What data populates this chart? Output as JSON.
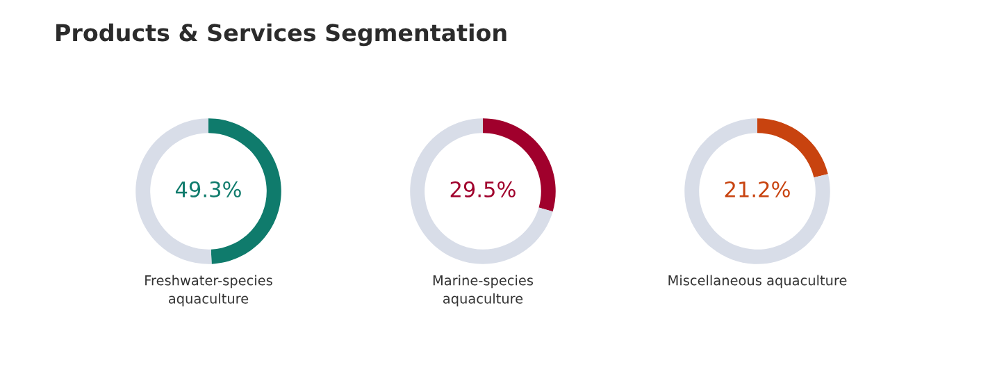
{
  "chart_data": [
    {
      "type": "donut",
      "title": "Products & Services Segmentation",
      "categories": [
        null,
        null
      ],
      "values": [
        49.3,
        50.7
      ],
      "colors": [
        "#0f7b6c",
        "#d8dde8"
      ],
      "value_labels": [
        "49.3%",
        null
      ],
      "annotations": [
        "Freshwater-species\naquaculture"
      ]
    },
    {
      "type": "donut",
      "categories": [
        null,
        null
      ],
      "values": [
        29.5,
        70.5
      ],
      "colors": [
        "#a0002c",
        "#d8dde8"
      ],
      "value_labels": [
        "29.5%",
        null
      ],
      "annotations": [
        "Marine-species\naquaculture"
      ]
    },
    {
      "type": "donut",
      "categories": [
        null,
        null
      ],
      "values": [
        21.2,
        78.8
      ],
      "colors": [
        "#c8430f",
        "#d8dde8"
      ],
      "value_labels": [
        "21.2%",
        null
      ],
      "annotations": [
        "Miscellaneous aquaculture"
      ]
    }
  ]
}
